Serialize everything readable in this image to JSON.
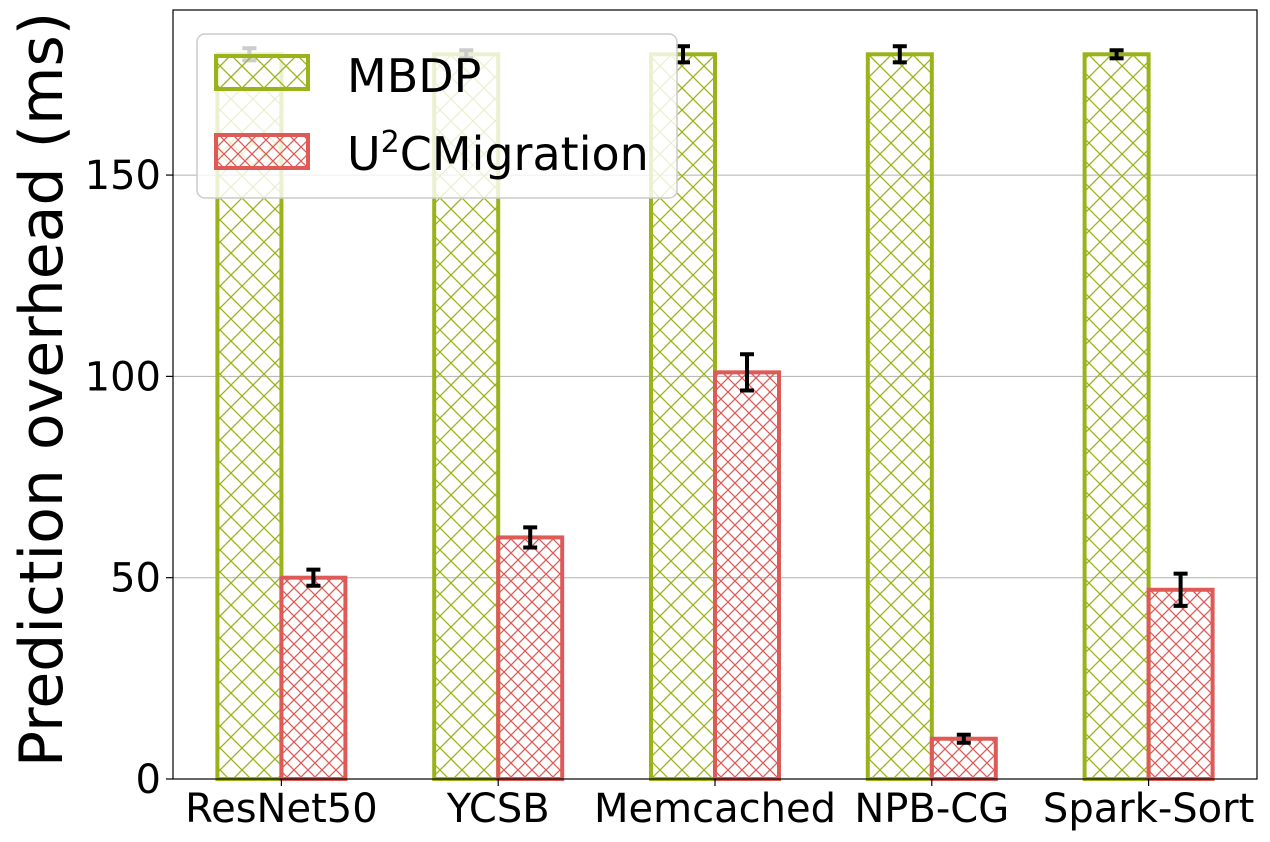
{
  "chart_data": {
    "type": "bar",
    "title": "",
    "xlabel": "",
    "ylabel": "Prediction overhead (ms)",
    "ylim": [
      0,
      191
    ],
    "yticks": [
      "0",
      "50",
      "100",
      "150"
    ],
    "grid": "horizontal",
    "legend_position": "top-left",
    "categories": [
      "ResNet50",
      "YCSB",
      "Memcached",
      "NPB-CG",
      "Spark-Sort"
    ],
    "series": [
      {
        "name": "MBDP",
        "color": "#9ab31a",
        "hatch": "cross",
        "values": [
          180,
          180,
          180,
          180,
          180
        ],
        "errors": [
          1.5,
          1.0,
          2.0,
          2.0,
          1.0
        ]
      },
      {
        "name": "U2CMigration",
        "color": "#dd5a57",
        "hatch": "dense-cross",
        "values": [
          50,
          60,
          101,
          10,
          47
        ],
        "errors": [
          2.0,
          2.5,
          4.5,
          1.0,
          4.0
        ]
      }
    ],
    "legend": {
      "mbdp_label": "MBDP",
      "u2c_base": "U",
      "u2c_sup": "2",
      "u2c_rest": "CMigration"
    }
  }
}
